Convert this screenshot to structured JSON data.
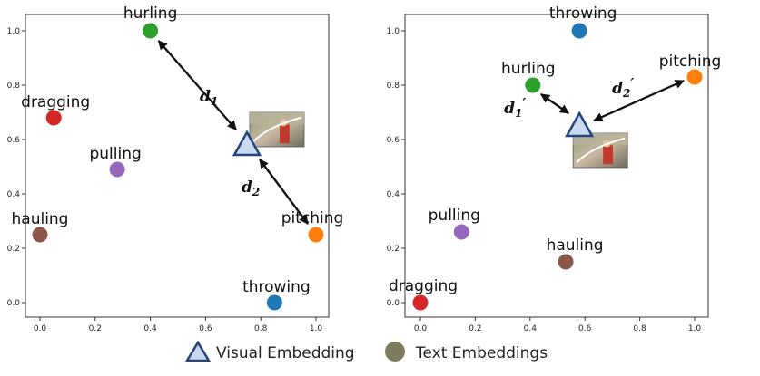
{
  "chart_data": [
    {
      "type": "scatter",
      "title": "",
      "xlabel": "",
      "ylabel": "",
      "xlim": [
        -0.05,
        1.05
      ],
      "ylim": [
        -0.05,
        1.05
      ],
      "xticks": [
        "0.0",
        "0.2",
        "0.4",
        "0.6",
        "0.8",
        "1.0"
      ],
      "yticks": [
        "0.0",
        "0.2",
        "0.4",
        "0.6",
        "0.8",
        "1.0"
      ],
      "grid": false,
      "text_embeddings": [
        {
          "label": "hurling",
          "x": 0.4,
          "y": 1.0,
          "color": "#2ca02c"
        },
        {
          "label": "dragging",
          "x": 0.05,
          "y": 0.68,
          "color": "#d62728"
        },
        {
          "label": "pulling",
          "x": 0.28,
          "y": 0.49,
          "color": "#9467bd"
        },
        {
          "label": "hauling",
          "x": 0.0,
          "y": 0.25,
          "color": "#8c564b"
        },
        {
          "label": "pitching",
          "x": 1.0,
          "y": 0.25,
          "color": "#ff7f0e"
        },
        {
          "label": "throwing",
          "x": 0.85,
          "y": 0.0,
          "color": "#1f77b4"
        }
      ],
      "visual_embedding": {
        "x": 0.75,
        "y": 0.58
      },
      "distances": [
        {
          "label": "d",
          "sub": "1",
          "prime": "",
          "from": "visual_embedding",
          "to": "hurling"
        },
        {
          "label": "d",
          "sub": "2",
          "prime": "",
          "from": "visual_embedding",
          "to": "pitching"
        }
      ]
    },
    {
      "type": "scatter",
      "title": "",
      "xlabel": "",
      "ylabel": "",
      "xlim": [
        -0.05,
        1.05
      ],
      "ylim": [
        -0.05,
        1.05
      ],
      "xticks": [
        "0.0",
        "0.2",
        "0.4",
        "0.6",
        "0.8",
        "1.0"
      ],
      "yticks": [
        "0.0",
        "0.2",
        "0.4",
        "0.6",
        "0.8",
        "1.0"
      ],
      "grid": false,
      "text_embeddings": [
        {
          "label": "throwing",
          "x": 0.58,
          "y": 1.0,
          "color": "#1f77b4"
        },
        {
          "label": "hurling",
          "x": 0.41,
          "y": 0.8,
          "color": "#2ca02c"
        },
        {
          "label": "pitching",
          "x": 1.0,
          "y": 0.83,
          "color": "#ff7f0e"
        },
        {
          "label": "pulling",
          "x": 0.15,
          "y": 0.26,
          "color": "#9467bd"
        },
        {
          "label": "hauling",
          "x": 0.53,
          "y": 0.15,
          "color": "#8c564b"
        },
        {
          "label": "dragging",
          "x": 0.0,
          "y": 0.0,
          "color": "#d62728"
        }
      ],
      "visual_embedding": {
        "x": 0.58,
        "y": 0.65
      },
      "distances": [
        {
          "label": "d",
          "sub": "1",
          "prime": "′",
          "from": "visual_embedding",
          "to": "hurling"
        },
        {
          "label": "d",
          "sub": "2",
          "prime": "′",
          "from": "visual_embedding",
          "to": "pitching"
        }
      ]
    }
  ],
  "legend": {
    "visual_label": "Visual Embedding",
    "text_label": "Text Embeddings",
    "text_swatch_color": "#7d7d5c",
    "visual_fill": "#c9daf0",
    "visual_stroke": "#23447a"
  }
}
